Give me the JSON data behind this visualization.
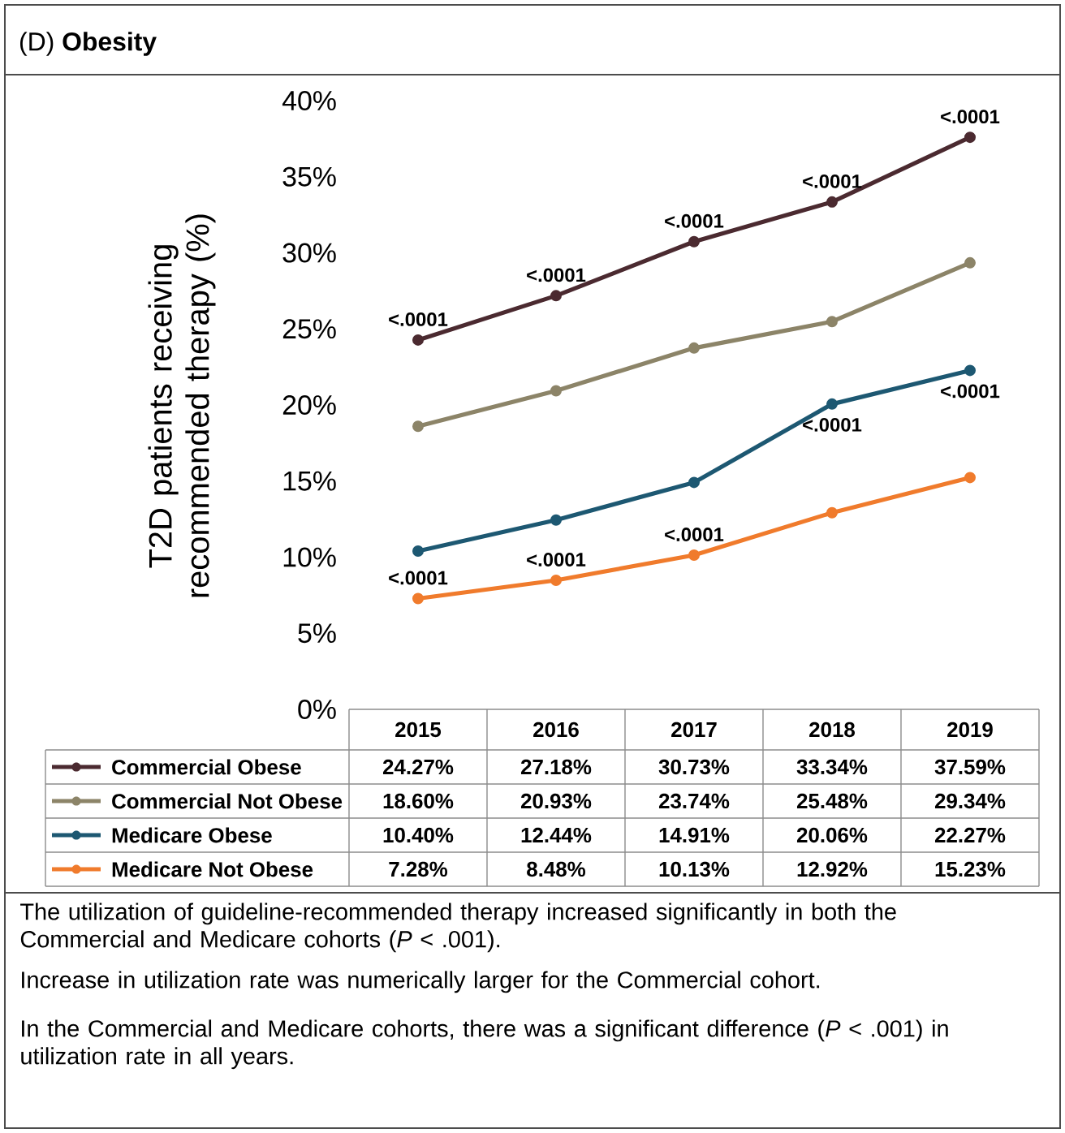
{
  "chart_data": {
    "type": "line",
    "title": "(D) **Obesity**",
    "ylabel": "T2D patients receiving recommended therapy (%)",
    "categories": [
      "2015",
      "2016",
      "2017",
      "2018",
      "2019"
    ],
    "series": [
      {
        "name": "Commercial Obese",
        "color": "#4b2a30",
        "values": [
          24.27,
          27.18,
          30.73,
          33.34,
          37.59
        ],
        "value_labels": [
          "24.27%",
          "27.18%",
          "30.73%",
          "33.34%",
          "37.59%"
        ]
      },
      {
        "name": "Commercial Not Obese",
        "color": "#8c8468",
        "values": [
          18.6,
          20.93,
          23.74,
          25.48,
          29.34
        ],
        "value_labels": [
          "18.60%",
          "20.93%",
          "23.74%",
          "25.48%",
          "29.34%"
        ]
      },
      {
        "name": "Medicare Obese",
        "color": "#1d5872",
        "values": [
          10.4,
          12.44,
          14.91,
          20.06,
          22.27
        ],
        "value_labels": [
          "10.40%",
          "12.44%",
          "14.91%",
          "20.06%",
          "22.27%"
        ]
      },
      {
        "name": "Medicare Not Obese",
        "color": "#f07b2c",
        "values": [
          7.28,
          8.48,
          10.13,
          12.92,
          15.23
        ],
        "value_labels": [
          "7.28%",
          "8.48%",
          "10.13%",
          "12.92%",
          "15.23%"
        ]
      }
    ],
    "ylim": [
      0,
      40
    ],
    "yticks": [
      {
        "value": 0,
        "label": "0%"
      },
      {
        "value": 5,
        "label": "5%"
      },
      {
        "value": 10,
        "label": "10%"
      },
      {
        "value": 15,
        "label": "15%"
      },
      {
        "value": 20,
        "label": "20%"
      },
      {
        "value": 25,
        "label": "25%"
      },
      {
        "value": 30,
        "label": "30%"
      },
      {
        "value": 35,
        "label": "35%"
      },
      {
        "value": 40,
        "label": "40%"
      }
    ],
    "annotations": [
      {
        "text": "<.0001",
        "x": "2015",
        "y": 24.27
      },
      {
        "text": "<.0001",
        "x": "2016",
        "y": 27.18
      },
      {
        "text": "<.0001",
        "x": "2017",
        "y": 30.73
      },
      {
        "text": "<.0001",
        "x": "2018",
        "y": 33.34
      },
      {
        "text": "<.0001",
        "x": "2019",
        "y": 37.59
      },
      {
        "text": "<.0001",
        "x": "2015",
        "y": 7.28
      },
      {
        "text": "<.0001",
        "x": "2016",
        "y": 8.48
      },
      {
        "text": "<.0001",
        "x": "2017",
        "y": 10.13
      },
      {
        "text": "<.0001",
        "x": "2018",
        "y": 20.06
      },
      {
        "text": "<.0001",
        "x": "2019",
        "y": 22.27
      },
      "The utilization of guideline-recommended therapy increased significantly in both the Commercial and Medicare cohorts (*P* < .001).",
      "Increase in utilization rate was numerically larger for the Commercial cohort.",
      "In the Commercial and Medicare cohorts, there was a significant difference (*P* < .001) in utilization rate in all years."
    ],
    "legend": "bottom",
    "marker": "circle",
    "line_style": "solid",
    "grid": false
  }
}
